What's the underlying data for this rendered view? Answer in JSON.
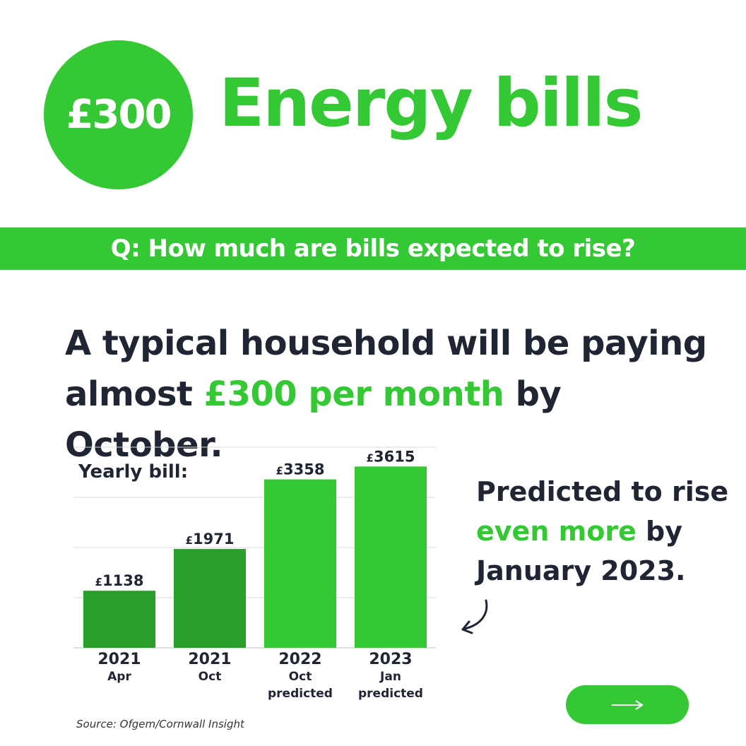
{
  "badge": {
    "label": "£300"
  },
  "header": {
    "title": "Energy bills"
  },
  "question": {
    "text": "Q: How much are bills expected to rise?"
  },
  "headline": {
    "line1": "A typical household will be paying",
    "line2_prefix": "almost ",
    "line2_highlight": "£300 per month",
    "line2_suffix": " by October."
  },
  "side_note": {
    "line1": "Predicted to rise",
    "highlight": "even more",
    "after_highlight": " by",
    "line3": "January 2023."
  },
  "source": "Source: Ofgem/Cornwall Insight",
  "icons": {
    "next": "right-arrow-icon",
    "pointer": "curved-arrow-icon"
  },
  "colors": {
    "accent": "#34c934",
    "dark_bar": "#2a9e2a",
    "text": "#1f2533"
  },
  "chart_data": {
    "type": "bar",
    "title": "Yearly bill:",
    "ylim": [
      0,
      4000
    ],
    "grid": true,
    "categories": [
      {
        "year": "2021",
        "sub": [
          "Apr"
        ]
      },
      {
        "year": "2021",
        "sub": [
          "Oct"
        ]
      },
      {
        "year": "2022",
        "sub": [
          "Oct",
          "predicted"
        ]
      },
      {
        "year": "2023",
        "sub": [
          "Jan",
          "predicted"
        ]
      }
    ],
    "values": [
      1138,
      1971,
      3358,
      3615
    ],
    "value_labels": [
      "£1138",
      "£1971",
      "£3358",
      "£3615"
    ],
    "bar_colors": [
      "#2a9e2a",
      "#2a9e2a",
      "#34c934",
      "#34c934"
    ]
  }
}
